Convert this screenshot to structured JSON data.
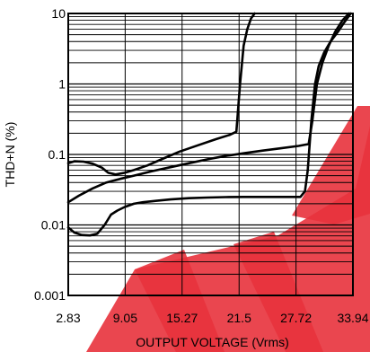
{
  "chart_data": {
    "type": "line",
    "title": "",
    "xlabel": "OUTPUT VOLTAGE (Vrms)",
    "ylabel": "THD+N (%)",
    "x_ticks": [
      "2.83",
      "9.05",
      "15.27",
      "21.5",
      "27.72",
      "33.94"
    ],
    "x_tick_values": [
      2.83,
      9.05,
      15.27,
      21.5,
      27.72,
      33.94
    ],
    "y_ticks": [
      "0.001",
      "0.01",
      "0.1",
      "1",
      "10"
    ],
    "y_tick_values": [
      0.001,
      0.01,
      0.1,
      1,
      10
    ],
    "xlim": [
      2.83,
      33.94
    ],
    "ylim": [
      0.001,
      10
    ],
    "y_scale": "log",
    "grid": true,
    "legend": "none",
    "watermark_color": "#e8323c",
    "series": [
      {
        "x": [
          2.83,
          3.5,
          4.5,
          5.5,
          6.5,
          7.2,
          8.0,
          9.0,
          10.0,
          11.5,
          13.0,
          15.0,
          17.0,
          19.0,
          20.5,
          21.2,
          21.6,
          22.0,
          22.4,
          22.8,
          23.2
        ],
        "y": [
          0.075,
          0.08,
          0.079,
          0.074,
          0.065,
          0.055,
          0.052,
          0.055,
          0.06,
          0.07,
          0.085,
          0.11,
          0.135,
          0.165,
          0.19,
          0.21,
          1.0,
          3.5,
          6.0,
          8.5,
          10
        ]
      },
      {
        "x": [
          2.83,
          4.0,
          5.5,
          7.0,
          8.5,
          10.0,
          12.0,
          14.0,
          16.0,
          18.0,
          20.0,
          22.0,
          24.0,
          26.0,
          28.0,
          28.8,
          29.1,
          29.5,
          30.0,
          30.6,
          31.3,
          32.0,
          32.8,
          33.5
        ],
        "y": [
          0.021,
          0.026,
          0.033,
          0.04,
          0.045,
          0.05,
          0.058,
          0.066,
          0.075,
          0.085,
          0.095,
          0.104,
          0.113,
          0.122,
          0.132,
          0.138,
          0.14,
          0.3,
          1.0,
          2.0,
          3.5,
          5.5,
          8.0,
          10
        ]
      },
      {
        "x": [
          2.83,
          3.5,
          4.3,
          5.2,
          6.0,
          6.8,
          7.5,
          8.2,
          9.0,
          10.0,
          11.0,
          12.5,
          14.0,
          16.0,
          18.0,
          20.0,
          22.0,
          24.0,
          26.0,
          27.5,
          28.2,
          28.7,
          29.0,
          29.4,
          29.8,
          30.2,
          30.8,
          31.5,
          32.3,
          33.0,
          33.7
        ],
        "y": [
          0.0092,
          0.0078,
          0.0072,
          0.0071,
          0.0075,
          0.01,
          0.014,
          0.016,
          0.018,
          0.02,
          0.021,
          0.022,
          0.023,
          0.024,
          0.0245,
          0.0248,
          0.025,
          0.025,
          0.025,
          0.025,
          0.025,
          0.03,
          0.06,
          0.3,
          1.0,
          1.8,
          2.8,
          4.0,
          5.5,
          7.5,
          10
        ]
      }
    ]
  }
}
